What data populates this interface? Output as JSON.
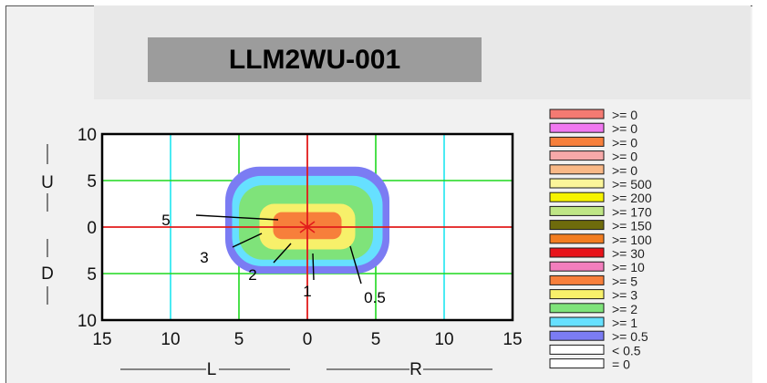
{
  "title": "LLM2WU-001",
  "chart_data": {
    "type": "heatmap",
    "x_axis": {
      "range": [
        -15,
        15
      ],
      "tick_labels": [
        "15",
        "10",
        "5",
        "0",
        "5",
        "10",
        "15"
      ],
      "left_label": "L",
      "right_label": "R"
    },
    "y_axis": {
      "range": [
        -10,
        10
      ],
      "tick_labels": [
        "10",
        "5",
        "0",
        "5",
        "10"
      ],
      "upper_label": "U",
      "lower_label": "D"
    },
    "contours": [
      {
        "level": "0.5",
        "color": "#7b7cf3",
        "x_extent": [
          -6,
          6
        ],
        "y_extent": [
          -5,
          6.5
        ]
      },
      {
        "level": "1",
        "color": "#66e0ff",
        "x_extent": [
          -5.5,
          5.5
        ],
        "y_extent": [
          -4.2,
          5.5
        ]
      },
      {
        "level": "2",
        "color": "#7fe37a",
        "x_extent": [
          -5,
          4.8
        ],
        "y_extent": [
          -3.5,
          4.5
        ]
      },
      {
        "level": "3",
        "color": "#f7f06a",
        "x_extent": [
          -3.5,
          3.5
        ],
        "y_extent": [
          -2.4,
          2.5
        ]
      },
      {
        "level": "5",
        "color": "#f77f3b",
        "x_extent": [
          -2.5,
          2.5
        ],
        "y_extent": [
          -1.3,
          1.6
        ]
      }
    ],
    "annotations": [
      {
        "label": "5",
        "x": -1.2,
        "y": 0.8
      },
      {
        "label": "3",
        "x": -3,
        "y": -0.5
      },
      {
        "label": "2",
        "x": -1.5,
        "y": -1.5
      },
      {
        "label": "1",
        "x": 0.3,
        "y": -3
      },
      {
        "label": "0.5",
        "x": 2.8,
        "y": -2
      }
    ],
    "legend": [
      {
        "label": ">= 0",
        "color": "#f47a72"
      },
      {
        "label": ">= 0",
        "color": "#f078f0"
      },
      {
        "label": ">= 0",
        "color": "#f77f3b"
      },
      {
        "label": ">= 0",
        "color": "#f7a9a9"
      },
      {
        "label": ">= 0",
        "color": "#f9b886"
      },
      {
        "label": ">= 500",
        "color": "#fbf59a"
      },
      {
        "label": ">= 200",
        "color": "#f6f300"
      },
      {
        "label": ">= 170",
        "color": "#bfe686"
      },
      {
        "label": ">= 150",
        "color": "#6e6b0c"
      },
      {
        "label": ">= 100",
        "color": "#f27d21"
      },
      {
        "label": ">= 30",
        "color": "#e8131a"
      },
      {
        "label": ">= 10",
        "color": "#f27ebd"
      },
      {
        "label": ">= 5",
        "color": "#f77f3b"
      },
      {
        "label": ">= 3",
        "color": "#f7f06a"
      },
      {
        "label": ">= 2",
        "color": "#7fe37a"
      },
      {
        "label": ">= 1",
        "color": "#66e0ff"
      },
      {
        "label": ">= 0.5",
        "color": "#7b7cf3"
      },
      {
        "label": "< 0.5",
        "color": "#ffffff"
      },
      {
        "label": "= 0",
        "color": "#ffffff"
      }
    ]
  }
}
